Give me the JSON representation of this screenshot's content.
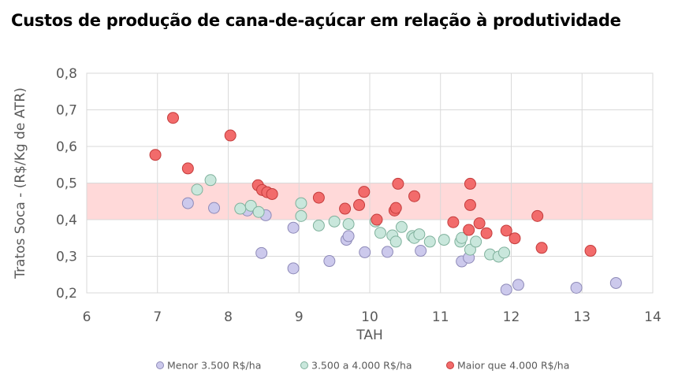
{
  "chart_data": {
    "type": "scatter",
    "title": "Custos de produção de cana-de-açúcar em relação à produtividade",
    "xlabel": "TAH",
    "ylabel": "Tratos Soca - (R$/Kg de ATR)",
    "xlim": [
      6,
      14
    ],
    "ylim": [
      0.2,
      0.8
    ],
    "x_ticks": [
      "6",
      "7",
      "8",
      "9",
      "10",
      "11",
      "12",
      "13",
      "14"
    ],
    "y_ticks": [
      "0,2",
      "0,3",
      "0,4",
      "0,5",
      "0,6",
      "0,7",
      "0,8"
    ],
    "grid": "vertical-and-horizontal",
    "legend_position": "bottom",
    "highlight_band": {
      "y_from": 0.4,
      "y_to": 0.5,
      "color": "#ffd9d9"
    },
    "series": [
      {
        "name": "Menor 3.500 R$/ha",
        "fill": "#ccc9ec",
        "stroke": "#8e8ab8",
        "points": [
          [
            7.43,
            0.445
          ],
          [
            7.8,
            0.432
          ],
          [
            8.27,
            0.425
          ],
          [
            8.53,
            0.412
          ],
          [
            8.47,
            0.309
          ],
          [
            8.92,
            0.378
          ],
          [
            8.92,
            0.267
          ],
          [
            9.43,
            0.287
          ],
          [
            9.67,
            0.345
          ],
          [
            9.7,
            0.355
          ],
          [
            9.93,
            0.311
          ],
          [
            10.25,
            0.312
          ],
          [
            10.72,
            0.315
          ],
          [
            11.3,
            0.286
          ],
          [
            11.4,
            0.296
          ],
          [
            11.93,
            0.209
          ],
          [
            12.1,
            0.222
          ],
          [
            12.92,
            0.214
          ],
          [
            13.48,
            0.227
          ]
        ]
      },
      {
        "name": "3.500 a 4.000 R$/ha",
        "fill": "#c9e7dc",
        "stroke": "#7fb19c",
        "points": [
          [
            7.56,
            0.482
          ],
          [
            7.75,
            0.508
          ],
          [
            8.17,
            0.43
          ],
          [
            8.32,
            0.438
          ],
          [
            8.43,
            0.421
          ],
          [
            9.03,
            0.445
          ],
          [
            9.03,
            0.41
          ],
          [
            9.28,
            0.384
          ],
          [
            9.5,
            0.395
          ],
          [
            9.7,
            0.388
          ],
          [
            10.08,
            0.395
          ],
          [
            10.15,
            0.364
          ],
          [
            10.32,
            0.357
          ],
          [
            10.37,
            0.34
          ],
          [
            10.45,
            0.38
          ],
          [
            10.6,
            0.355
          ],
          [
            10.63,
            0.35
          ],
          [
            10.7,
            0.36
          ],
          [
            10.85,
            0.34
          ],
          [
            11.05,
            0.345
          ],
          [
            11.28,
            0.34
          ],
          [
            11.3,
            0.35
          ],
          [
            11.42,
            0.318
          ],
          [
            11.5,
            0.34
          ],
          [
            11.7,
            0.305
          ],
          [
            11.82,
            0.299
          ],
          [
            11.9,
            0.31
          ]
        ]
      },
      {
        "name": "Maior que 4.000 R$/ha",
        "fill": "#f26b6b",
        "stroke": "#c43c3c",
        "points": [
          [
            6.97,
            0.577
          ],
          [
            7.22,
            0.678
          ],
          [
            7.43,
            0.54
          ],
          [
            8.03,
            0.63
          ],
          [
            8.42,
            0.494
          ],
          [
            8.48,
            0.481
          ],
          [
            8.55,
            0.475
          ],
          [
            8.62,
            0.47
          ],
          [
            9.28,
            0.46
          ],
          [
            9.65,
            0.43
          ],
          [
            9.85,
            0.44
          ],
          [
            9.92,
            0.476
          ],
          [
            10.1,
            0.4
          ],
          [
            10.35,
            0.425
          ],
          [
            10.37,
            0.432
          ],
          [
            10.4,
            0.498
          ],
          [
            10.63,
            0.464
          ],
          [
            11.18,
            0.393
          ],
          [
            11.4,
            0.372
          ],
          [
            11.42,
            0.498
          ],
          [
            11.42,
            0.44
          ],
          [
            11.55,
            0.39
          ],
          [
            11.65,
            0.363
          ],
          [
            11.93,
            0.37
          ],
          [
            12.05,
            0.349
          ],
          [
            12.37,
            0.41
          ],
          [
            12.43,
            0.323
          ],
          [
            13.12,
            0.315
          ]
        ]
      }
    ]
  }
}
